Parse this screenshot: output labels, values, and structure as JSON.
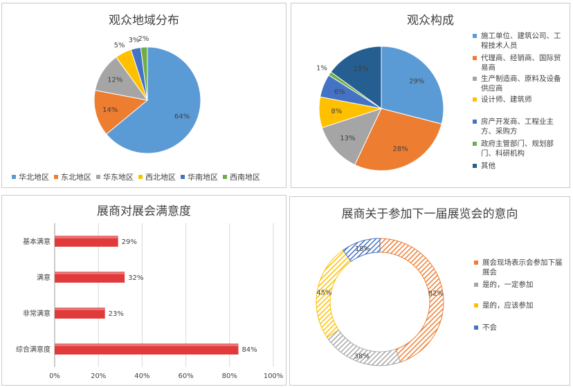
{
  "chart_data": [
    {
      "type": "pie",
      "title": "观众地域分布",
      "categories": [
        "华北地区",
        "东北地区",
        "华东地区",
        "西北地区",
        "华南地区",
        "西南地区"
      ],
      "values": [
        64,
        14,
        12,
        5,
        3,
        2
      ],
      "value_labels": [
        "64%",
        "14%",
        "12%",
        "5%",
        "3%",
        "2%"
      ],
      "colors": [
        "#5b9bd5",
        "#ed7d31",
        "#a5a5a5",
        "#ffc000",
        "#4472c4",
        "#70ad47"
      ],
      "legend_position": "bottom"
    },
    {
      "type": "pie",
      "title": "观众构成",
      "categories": [
        "施工单位、建筑公司、工程技术人员",
        "代理商、经销商、国际贸易商",
        "生产制造商、原料及设备供应商",
        "设计师、建筑师",
        "房产开发商、工程业主方、采购方",
        "政府主管部门、规划部门、科研机构",
        "其他"
      ],
      "values": [
        29,
        28,
        13,
        8,
        6,
        1,
        15
      ],
      "value_labels": [
        "29%",
        "28%",
        "13%",
        "8%",
        "6%",
        "1%",
        "15%"
      ],
      "colors": [
        "#5b9bd5",
        "#ed7d31",
        "#a5a5a5",
        "#ffc000",
        "#4472c4",
        "#70ad47",
        "#255e91"
      ],
      "legend_position": "right"
    },
    {
      "type": "bar",
      "orientation": "horizontal",
      "title": "展商对展会满意度",
      "categories": [
        "基本满意",
        "满意",
        "非常满意",
        "综合满意度"
      ],
      "values": [
        29,
        32,
        23,
        84
      ],
      "value_labels": [
        "29%",
        "32%",
        "23%",
        "84%"
      ],
      "xlim": [
        0,
        100
      ],
      "xticks": [
        "0%",
        "20%",
        "40%",
        "60%",
        "80%",
        "100%"
      ],
      "grid": true,
      "bar_color": "#e03a3a"
    },
    {
      "type": "pie",
      "variant": "doughnut",
      "title": "展商关于参加下一届展览会的意向",
      "categories": [
        "展会现场表示会参加下届展会",
        "是的，一定参加",
        "是的，应该参加",
        "不会"
      ],
      "values": [
        82,
        38,
        45,
        18
      ],
      "value_labels": [
        "82%",
        "38%",
        "45%",
        "18%"
      ],
      "colors": [
        "#ed7d31",
        "#a5a5a5",
        "#ffc000",
        "#4472c4"
      ],
      "pattern": "diagonal-hatch",
      "legend_position": "right"
    }
  ]
}
